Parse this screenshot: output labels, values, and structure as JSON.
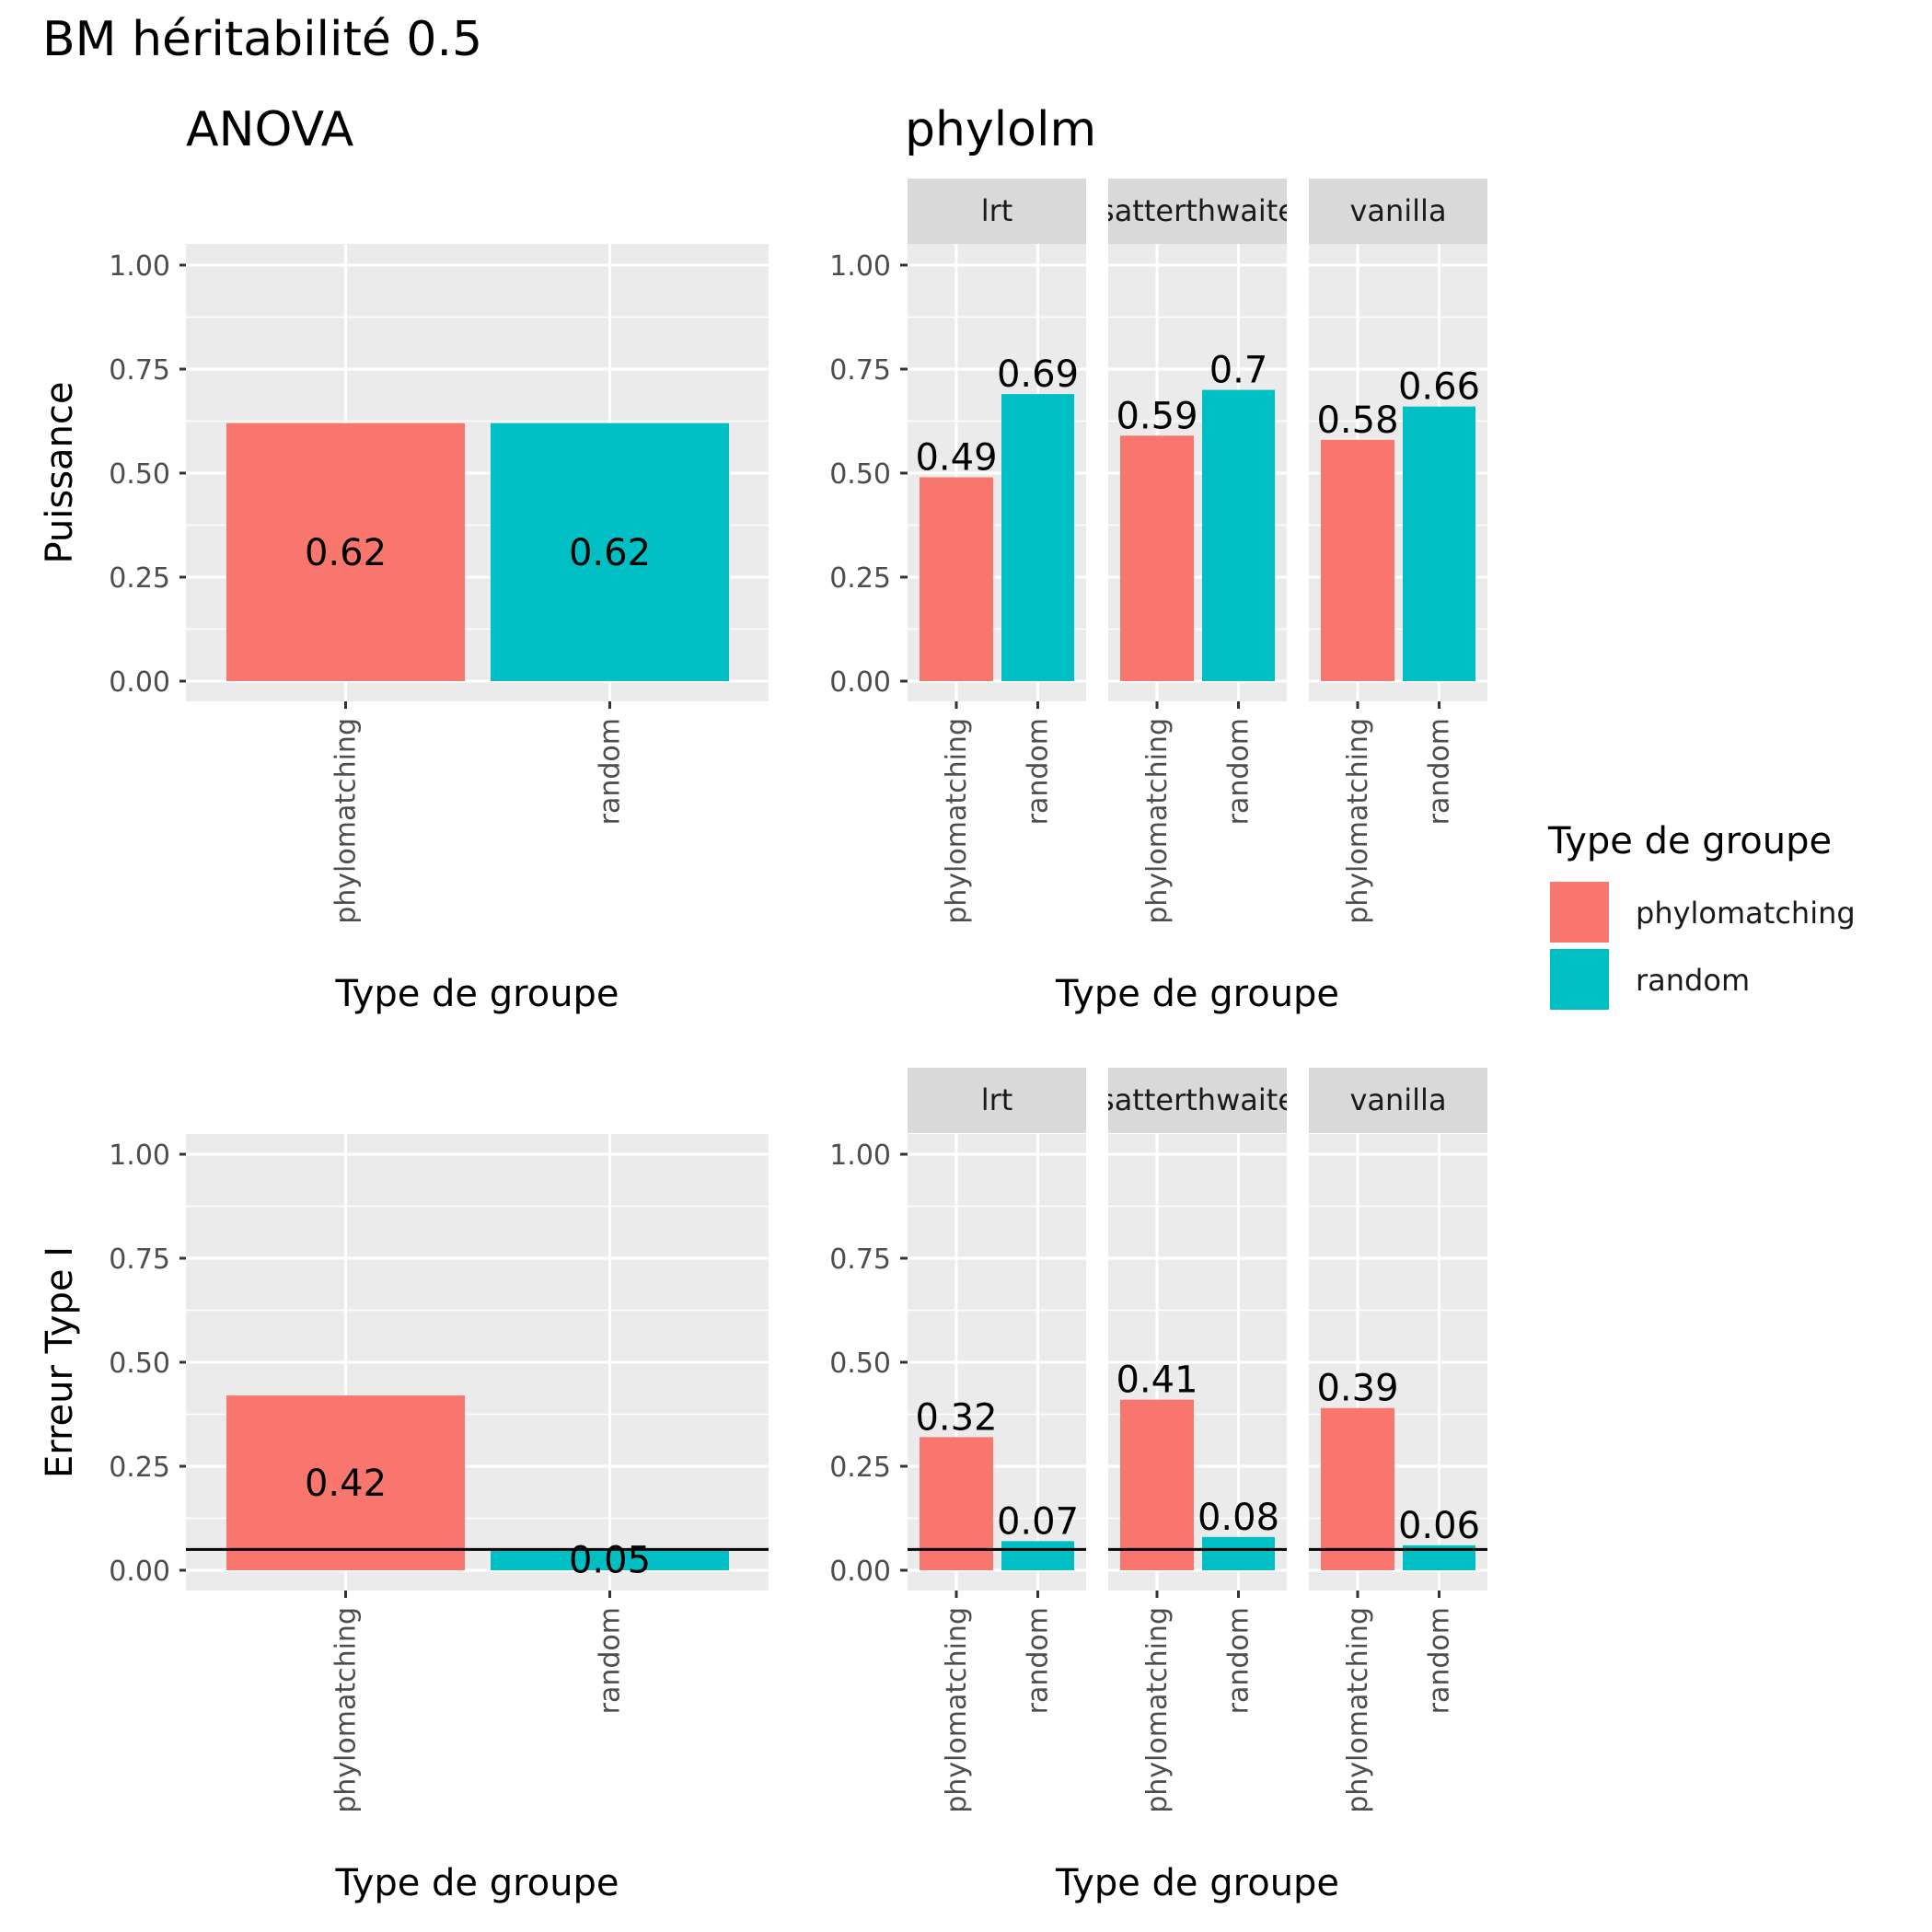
{
  "figure_title": "BM héritabilité  0.5",
  "column_titles": [
    "ANOVA",
    "phylolm"
  ],
  "x_axis_title": "Type de groupe",
  "legend": {
    "title": "Type de groupe",
    "items": [
      {
        "label": "phylomatching",
        "color": "#F8766D"
      },
      {
        "label": "random",
        "color": "#00BFC4"
      }
    ]
  },
  "colors": {
    "phylomatching": "#F8766D",
    "random": "#00BFC4",
    "panel_bg": "#EBEBEB",
    "strip_bg": "#D9D9D9",
    "grid": "#FFFFFF",
    "reference_line": "#000000"
  },
  "chart_data": [
    {
      "type": "bar",
      "method": "ANOVA",
      "facet": null,
      "categories": [
        "phylomatching",
        "random"
      ],
      "values": [
        0.62,
        0.62
      ],
      "value_labels": [
        "0.62",
        "0.62"
      ],
      "label_position": "middle",
      "ylabel": "Puissance",
      "xlabel": "Type de groupe",
      "ylim": [
        0,
        1
      ],
      "y_ticks": [
        "0.00",
        "0.25",
        "0.50",
        "0.75",
        "1.00"
      ]
    },
    {
      "type": "bar",
      "method": "phylolm",
      "facet": "lrt",
      "categories": [
        "phylomatching",
        "random"
      ],
      "values": [
        0.49,
        0.69
      ],
      "value_labels": [
        "0.49",
        "0.69"
      ],
      "label_position": "top",
      "ylabel": "Puissance",
      "xlabel": "Type de groupe",
      "ylim": [
        0,
        1
      ],
      "y_ticks": [
        "0.00",
        "0.25",
        "0.50",
        "0.75",
        "1.00"
      ]
    },
    {
      "type": "bar",
      "method": "phylolm",
      "facet": "satterthwaite",
      "categories": [
        "phylomatching",
        "random"
      ],
      "values": [
        0.59,
        0.7
      ],
      "value_labels": [
        "0.59",
        "0.7"
      ],
      "label_position": "top",
      "ylabel": "Puissance",
      "xlabel": "Type de groupe",
      "ylim": [
        0,
        1
      ],
      "y_ticks": [
        "0.00",
        "0.25",
        "0.50",
        "0.75",
        "1.00"
      ]
    },
    {
      "type": "bar",
      "method": "phylolm",
      "facet": "vanilla",
      "categories": [
        "phylomatching",
        "random"
      ],
      "values": [
        0.58,
        0.66
      ],
      "value_labels": [
        "0.58",
        "0.66"
      ],
      "label_position": "top",
      "ylabel": "Puissance",
      "xlabel": "Type de groupe",
      "ylim": [
        0,
        1
      ],
      "y_ticks": [
        "0.00",
        "0.25",
        "0.50",
        "0.75",
        "1.00"
      ]
    },
    {
      "type": "bar",
      "method": "ANOVA",
      "facet": null,
      "categories": [
        "phylomatching",
        "random"
      ],
      "values": [
        0.42,
        0.05
      ],
      "value_labels": [
        "0.42",
        "0.05"
      ],
      "label_position": "middle",
      "ylabel": "Erreur Type I",
      "xlabel": "Type de groupe",
      "ylim": [
        0,
        1
      ],
      "y_ticks": [
        "0.00",
        "0.25",
        "0.50",
        "0.75",
        "1.00"
      ],
      "reference_line": 0.05
    },
    {
      "type": "bar",
      "method": "phylolm",
      "facet": "lrt",
      "categories": [
        "phylomatching",
        "random"
      ],
      "values": [
        0.32,
        0.07
      ],
      "value_labels": [
        "0.32",
        "0.07"
      ],
      "label_position": "top",
      "ylabel": "Erreur Type I",
      "xlabel": "Type de groupe",
      "ylim": [
        0,
        1
      ],
      "y_ticks": [
        "0.00",
        "0.25",
        "0.50",
        "0.75",
        "1.00"
      ],
      "reference_line": 0.05
    },
    {
      "type": "bar",
      "method": "phylolm",
      "facet": "satterthwaite",
      "categories": [
        "phylomatching",
        "random"
      ],
      "values": [
        0.41,
        0.08
      ],
      "value_labels": [
        "0.41",
        "0.08"
      ],
      "label_position": "top",
      "ylabel": "Erreur Type I",
      "xlabel": "Type de groupe",
      "ylim": [
        0,
        1
      ],
      "y_ticks": [
        "0.00",
        "0.25",
        "0.50",
        "0.75",
        "1.00"
      ],
      "reference_line": 0.05
    },
    {
      "type": "bar",
      "method": "phylolm",
      "facet": "vanilla",
      "categories": [
        "phylomatching",
        "random"
      ],
      "values": [
        0.39,
        0.06
      ],
      "value_labels": [
        "0.39",
        "0.06"
      ],
      "label_position": "top",
      "ylabel": "Erreur Type I",
      "xlabel": "Type de groupe",
      "ylim": [
        0,
        1
      ],
      "y_ticks": [
        "0.00",
        "0.25",
        "0.50",
        "0.75",
        "1.00"
      ],
      "reference_line": 0.05
    }
  ]
}
